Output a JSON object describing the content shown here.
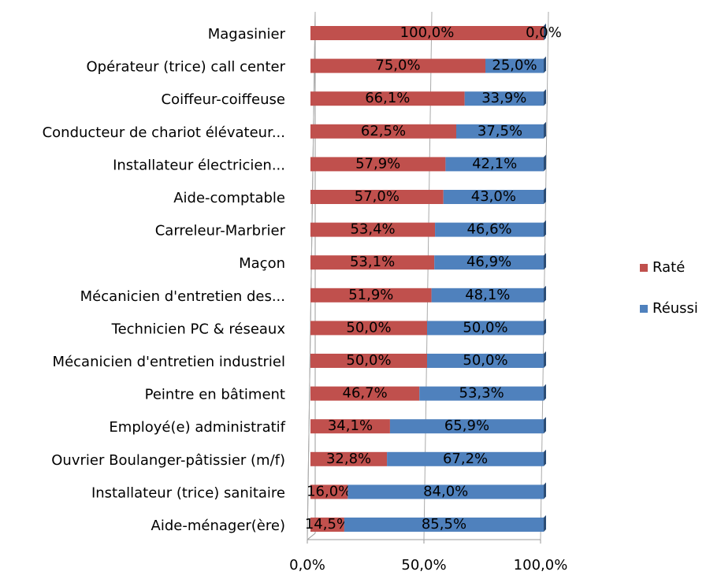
{
  "chart_data": {
    "type": "bar",
    "orientation": "horizontal",
    "stacked": true,
    "categories": [
      "Magasinier",
      "Opérateur (trice) call center",
      "Coiffeur-coiffeuse",
      "Conducteur de chariot élévateur...",
      "Installateur électricien...",
      "Aide-comptable",
      "Carreleur-Marbrier",
      "Maçon",
      "Mécanicien d'entretien des...",
      "Technicien PC & réseaux",
      "Mécanicien d'entretien industriel",
      "Peintre en bâtiment",
      "Employé(e) administratif",
      "Ouvrier Boulanger-pâtissier (m/f)",
      "Installateur (trice) sanitaire",
      "Aide-ménager(ère)"
    ],
    "series": [
      {
        "name": "Raté",
        "color": "#c0504d",
        "values": [
          100,
          75,
          66.1,
          62.5,
          57.9,
          57,
          53.4,
          53.1,
          51.9,
          50,
          50,
          46.7,
          34.1,
          32.8,
          16,
          14.5
        ],
        "value_labels": [
          "100,0%",
          "75,0%",
          "66,1%",
          "62,5%",
          "57,9%",
          "57,0%",
          "53,4%",
          "53,1%",
          "51,9%",
          "50,0%",
          "50,0%",
          "46,7%",
          "34,1%",
          "32,8%",
          "16,0%",
          "14,5%"
        ]
      },
      {
        "name": "Réussi",
        "color": "#4f81bd",
        "values": [
          0,
          25,
          33.9,
          37.5,
          42.1,
          43,
          46.6,
          46.9,
          48.1,
          50,
          50,
          53.3,
          65.9,
          67.2,
          84,
          85.5
        ],
        "value_labels": [
          "0,0%",
          "25,0%",
          "33,9%",
          "37,5%",
          "42,1%",
          "43,0%",
          "46,6%",
          "46,9%",
          "48,1%",
          "50,0%",
          "50,0%",
          "53,3%",
          "65,9%",
          "67,2%",
          "84,0%",
          "85,5%"
        ]
      }
    ],
    "xlim": [
      0,
      100
    ],
    "xticks": [
      {
        "value": 0,
        "label": "0,0%"
      },
      {
        "value": 50,
        "label": "50,0%"
      },
      {
        "value": 100,
        "label": "100,0%"
      }
    ],
    "grid": true,
    "legend": "right"
  }
}
